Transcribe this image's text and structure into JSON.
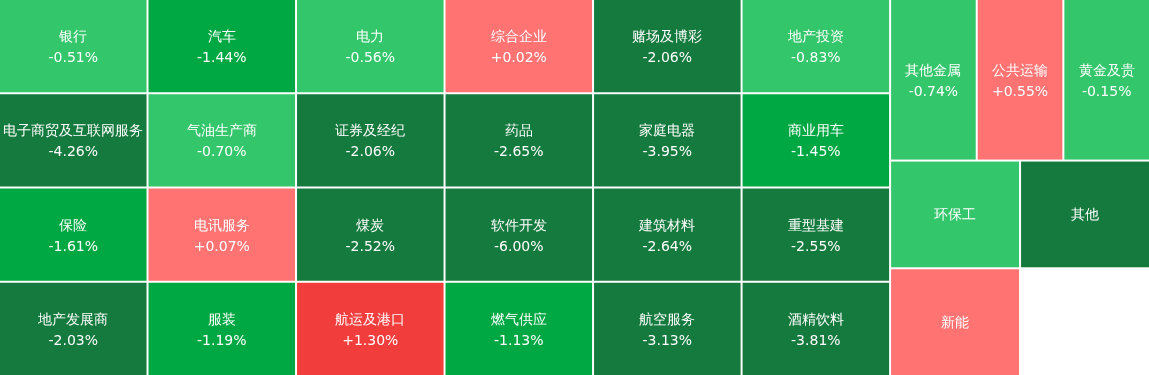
{
  "chart_data": {
    "type": "other",
    "categories": [
      "银行",
      "电子商贸及互联网服务",
      "保险",
      "地产发展商",
      "汽车",
      "气油生产商",
      "电讯服务",
      "服装",
      "电力",
      "证券及经纪",
      "煤炭",
      "航运及港口",
      "综合企业",
      "药品",
      "软件开发",
      "燃气供应",
      "赌场及博彩",
      "家庭电器",
      "建筑材料",
      "航空服务",
      "地产投资",
      "商业用车",
      "重型基建",
      "酒精饮料",
      "其他金属",
      "公共运输",
      "黄金及贵",
      "环保工",
      "新能",
      "其他"
    ],
    "value_labels": [
      "-0.51%",
      "-4.26%",
      "-1.61%",
      "-2.03%",
      "-1.44%",
      "-0.70%",
      "+0.07%",
      "-1.19%",
      "-0.56%",
      "-2.06%",
      "-2.52%",
      "+1.30%",
      "+0.02%",
      "-2.65%",
      "-6.00%",
      "-1.13%",
      "-2.06%",
      "-3.95%",
      "-2.64%",
      "-3.13%",
      "-0.83%",
      "-1.45%",
      "-2.55%",
      "-3.81%",
      "-0.74%",
      "+0.55%",
      "-0.15%",
      null,
      null,
      null
    ],
    "values": [
      -0.51,
      -4.26,
      -1.61,
      -2.03,
      -1.44,
      -0.7,
      0.07,
      -1.19,
      -0.56,
      -2.06,
      -2.52,
      1.3,
      0.02,
      -2.65,
      -6.0,
      -1.13,
      -2.06,
      -3.95,
      -2.64,
      -3.13,
      -0.83,
      -1.45,
      -2.55,
      -3.81,
      -0.74,
      0.55,
      -0.15,
      null,
      null,
      null
    ],
    "colors": [
      null,
      null,
      null,
      null,
      null,
      null,
      null,
      null,
      null,
      null,
      null,
      null,
      null,
      null,
      null,
      null,
      null,
      null,
      null,
      null,
      null,
      null,
      null,
      null,
      null,
      null,
      null,
      "#33c66b",
      "#ff7373",
      "#157a3e"
    ]
  }
}
